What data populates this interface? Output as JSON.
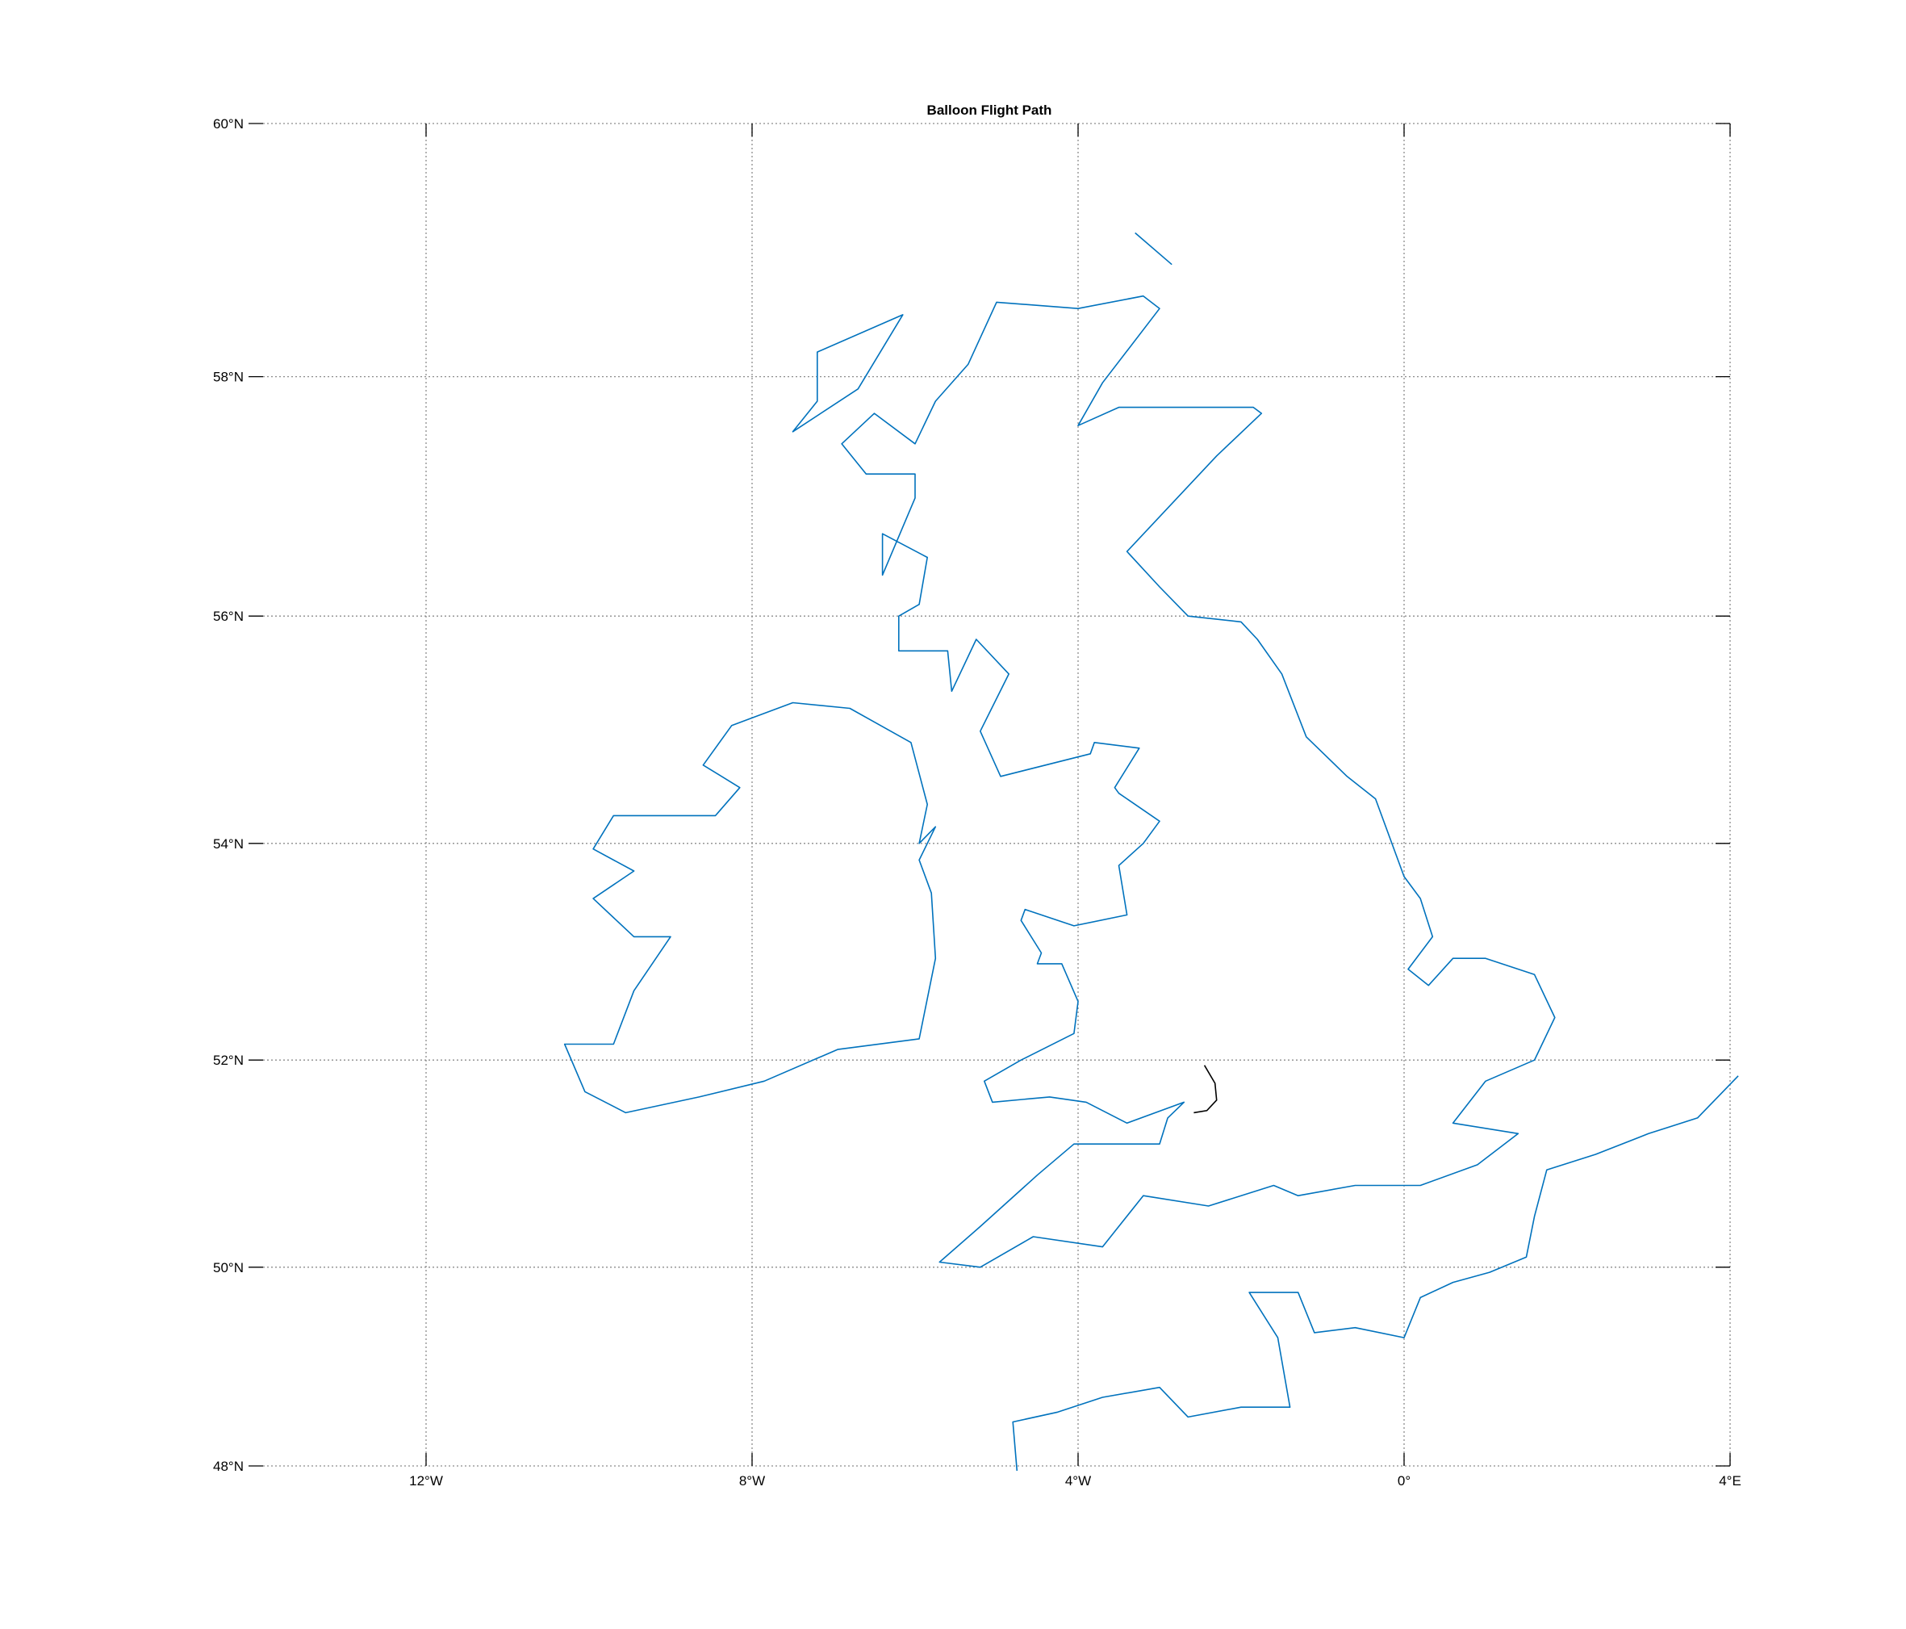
{
  "chart_data": {
    "type": "map",
    "title": "Balloon Flight Path",
    "lon_range": [
      -14,
      4
    ],
    "lat_range": [
      48,
      60
    ],
    "grid": true,
    "lon_ticks": [
      {
        "value": -12,
        "label": "12°W"
      },
      {
        "value": -8,
        "label": "8°W"
      },
      {
        "value": -4,
        "label": "4°W"
      },
      {
        "value": 0,
        "label": "0°"
      },
      {
        "value": 4,
        "label": "4°E"
      }
    ],
    "lat_ticks": [
      {
        "value": 60,
        "label": "60°N"
      },
      {
        "value": 58,
        "label": "58°N"
      },
      {
        "value": 56,
        "label": "56°N"
      },
      {
        "value": 54,
        "label": "54°N"
      },
      {
        "value": 52,
        "label": "52°N"
      },
      {
        "value": 50,
        "label": "50°N"
      },
      {
        "value": 48,
        "label": "48°N"
      }
    ],
    "colors": {
      "coastline": "#0072BD",
      "flight_path": "#000000",
      "grid": "#8c8c8c"
    },
    "coastlines": [
      {
        "name": "Great Britain",
        "closed": true,
        "points": [
          [
            -3.2,
            50.7
          ],
          [
            -2.4,
            50.6
          ],
          [
            -1.6,
            50.8
          ],
          [
            -1.3,
            50.7
          ],
          [
            -0.6,
            50.8
          ],
          [
            0.2,
            50.8
          ],
          [
            0.9,
            51.0
          ],
          [
            1.4,
            51.3
          ],
          [
            0.6,
            51.4
          ],
          [
            1.0,
            51.8
          ],
          [
            1.6,
            52.0
          ],
          [
            1.85,
            52.4
          ],
          [
            1.6,
            52.8
          ],
          [
            1.0,
            52.95
          ],
          [
            0.6,
            52.95
          ],
          [
            0.3,
            52.7
          ],
          [
            0.05,
            52.85
          ],
          [
            0.35,
            53.15
          ],
          [
            0.2,
            53.5
          ],
          [
            0.0,
            53.7
          ],
          [
            -0.35,
            54.4
          ],
          [
            -0.7,
            54.6
          ],
          [
            -1.2,
            54.95
          ],
          [
            -1.5,
            55.5
          ],
          [
            -1.8,
            55.8
          ],
          [
            -2.0,
            55.95
          ],
          [
            -2.65,
            56.0
          ],
          [
            -3.0,
            56.25
          ],
          [
            -3.4,
            56.55
          ],
          [
            -2.3,
            57.35
          ],
          [
            -1.75,
            57.7
          ],
          [
            -1.85,
            57.75
          ],
          [
            -3.5,
            57.75
          ],
          [
            -4.0,
            57.6
          ],
          [
            -3.7,
            57.95
          ],
          [
            -3.0,
            58.55
          ],
          [
            -3.2,
            58.65
          ],
          [
            -4.0,
            58.55
          ],
          [
            -5.0,
            58.6
          ],
          [
            -5.35,
            58.1
          ],
          [
            -5.75,
            57.8
          ],
          [
            -6.0,
            57.45
          ],
          [
            -6.5,
            57.7
          ],
          [
            -6.9,
            57.45
          ],
          [
            -6.6,
            57.2
          ],
          [
            -6.0,
            57.2
          ],
          [
            -6.0,
            57.0
          ],
          [
            -6.4,
            56.35
          ],
          [
            -6.4,
            56.7
          ],
          [
            -5.85,
            56.5
          ],
          [
            -5.95,
            56.1
          ],
          [
            -6.2,
            56.0
          ],
          [
            -6.2,
            55.7
          ],
          [
            -5.6,
            55.7
          ],
          [
            -5.55,
            55.35
          ],
          [
            -5.25,
            55.8
          ],
          [
            -4.85,
            55.5
          ],
          [
            -5.2,
            55.0
          ],
          [
            -4.95,
            54.6
          ],
          [
            -3.85,
            54.8
          ],
          [
            -3.8,
            54.9
          ],
          [
            -3.25,
            54.85
          ],
          [
            -3.55,
            54.5
          ],
          [
            -3.5,
            54.45
          ],
          [
            -3.0,
            54.2
          ],
          [
            -3.2,
            54.0
          ],
          [
            -3.5,
            53.8
          ],
          [
            -3.4,
            53.35
          ],
          [
            -4.05,
            53.25
          ],
          [
            -4.65,
            53.4
          ],
          [
            -4.7,
            53.3
          ],
          [
            -4.45,
            53.0
          ],
          [
            -4.5,
            52.9
          ],
          [
            -4.2,
            52.9
          ],
          [
            -4.0,
            52.55
          ],
          [
            -4.05,
            52.25
          ],
          [
            -4.7,
            52.0
          ],
          [
            -5.15,
            51.8
          ],
          [
            -5.05,
            51.6
          ],
          [
            -4.35,
            51.65
          ],
          [
            -3.9,
            51.6
          ],
          [
            -3.4,
            51.4
          ],
          [
            -2.7,
            51.6
          ],
          [
            -2.9,
            51.45
          ],
          [
            -3.0,
            51.2
          ],
          [
            -3.5,
            51.2
          ],
          [
            -4.05,
            51.2
          ],
          [
            -4.5,
            50.9
          ],
          [
            -5.2,
            50.4
          ],
          [
            -5.7,
            50.05
          ],
          [
            -5.2,
            50.0
          ],
          [
            -4.55,
            50.3
          ],
          [
            -3.7,
            50.2
          ]
        ]
      },
      {
        "name": "Ireland",
        "closed": true,
        "points": [
          [
            -6.05,
            54.9
          ],
          [
            -5.85,
            54.35
          ],
          [
            -5.95,
            54.0
          ],
          [
            -5.75,
            54.15
          ],
          [
            -5.95,
            53.85
          ],
          [
            -5.8,
            53.55
          ],
          [
            -5.75,
            52.95
          ],
          [
            -5.95,
            52.2
          ],
          [
            -6.95,
            52.1
          ],
          [
            -7.85,
            51.8
          ],
          [
            -8.65,
            51.65
          ],
          [
            -9.55,
            51.5
          ],
          [
            -10.05,
            51.7
          ],
          [
            -10.3,
            52.15
          ],
          [
            -9.7,
            52.15
          ],
          [
            -9.45,
            52.65
          ],
          [
            -9.0,
            53.15
          ],
          [
            -9.45,
            53.15
          ],
          [
            -9.95,
            53.5
          ],
          [
            -9.45,
            53.75
          ],
          [
            -9.95,
            53.95
          ],
          [
            -9.7,
            54.25
          ],
          [
            -8.45,
            54.25
          ],
          [
            -8.15,
            54.5
          ],
          [
            -8.6,
            54.7
          ],
          [
            -8.25,
            55.05
          ],
          [
            -7.5,
            55.25
          ],
          [
            -6.8,
            55.2
          ]
        ]
      },
      {
        "name": "Lewis and Harris",
        "closed": true,
        "points": [
          [
            -6.15,
            58.5
          ],
          [
            -6.7,
            57.9
          ],
          [
            -7.5,
            57.55
          ],
          [
            -7.2,
            57.8
          ],
          [
            -7.2,
            58.2
          ]
        ]
      },
      {
        "name": "Orkney",
        "closed": false,
        "points": [
          [
            -3.3,
            59.15
          ],
          [
            -2.85,
            58.9
          ]
        ]
      },
      {
        "name": "Continental Europe",
        "closed": false,
        "points": [
          [
            -4.75,
            47.95
          ],
          [
            -4.8,
            48.45
          ],
          [
            -4.25,
            48.55
          ],
          [
            -3.7,
            48.7
          ],
          [
            -3.0,
            48.8
          ],
          [
            -2.65,
            48.5
          ],
          [
            -2.0,
            48.6
          ],
          [
            -1.4,
            48.6
          ],
          [
            -1.55,
            49.3
          ],
          [
            -1.9,
            49.75
          ],
          [
            -1.3,
            49.75
          ],
          [
            -1.1,
            49.35
          ],
          [
            -0.6,
            49.4
          ],
          [
            0.0,
            49.3
          ],
          [
            0.2,
            49.7
          ],
          [
            0.6,
            49.85
          ],
          [
            1.05,
            49.95
          ],
          [
            1.5,
            50.1
          ],
          [
            1.6,
            50.5
          ],
          [
            1.75,
            50.95
          ],
          [
            2.35,
            51.1
          ],
          [
            3.0,
            51.3
          ],
          [
            3.6,
            51.45
          ],
          [
            4.1,
            51.85
          ]
        ]
      }
    ],
    "flight_path": [
      [
        -2.45,
        51.95
      ],
      [
        -2.32,
        51.78
      ],
      [
        -2.3,
        51.62
      ],
      [
        -2.42,
        51.52
      ],
      [
        -2.58,
        51.5
      ]
    ]
  }
}
